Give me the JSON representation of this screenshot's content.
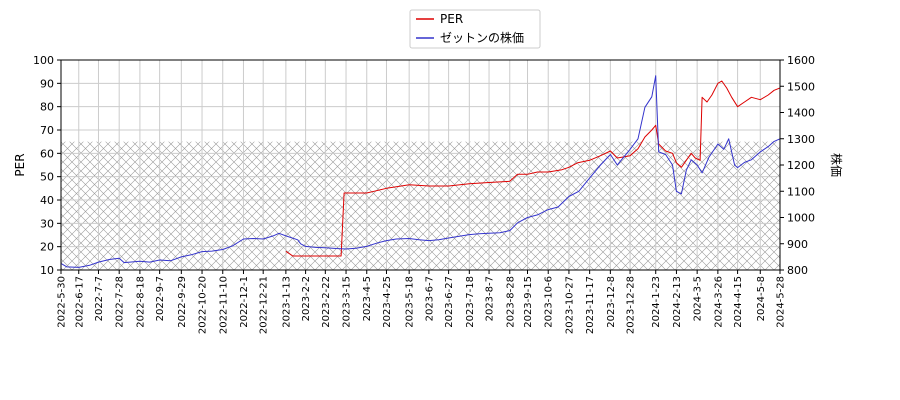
{
  "chart_data": {
    "type": "line",
    "title": "",
    "legend_position": "top-center",
    "grid": true,
    "hatched_band_left": [
      10,
      65
    ],
    "x_range": [
      "2022-05-30",
      "2024-05-28"
    ],
    "x_ticks": [
      "2022-5-30",
      "2022-6-17",
      "2022-7-7",
      "2022-7-28",
      "2022-8-18",
      "2022-9-7",
      "2022-9-29",
      "2022-10-20",
      "2022-11-10",
      "2022-12-1",
      "2022-12-21",
      "2023-1-13",
      "2023-2-2",
      "2023-2-22",
      "2023-3-15",
      "2023-4-5",
      "2023-4-25",
      "2023-5-18",
      "2023-6-7",
      "2023-6-27",
      "2023-7-18",
      "2023-8-7",
      "2023-8-28",
      "2023-9-15",
      "2023-10-6",
      "2023-10-27",
      "2023-11-17",
      "2023-12-8",
      "2023-12-28",
      "2024-1-23",
      "2024-2-13",
      "2024-3-5",
      "2024-3-26",
      "2024-4-15",
      "2024-5-8",
      "2024-5-28"
    ],
    "y_left": {
      "label": "PER",
      "range": [
        10,
        100
      ],
      "ticks": [
        "10",
        "20",
        "30",
        "40",
        "50",
        "60",
        "70",
        "80",
        "90",
        "100"
      ]
    },
    "y_right": {
      "label": "株価",
      "range": [
        800,
        1600
      ],
      "ticks": [
        "800",
        "900",
        "1000",
        "1100",
        "1200",
        "1300",
        "1400",
        "1500",
        "1600"
      ]
    },
    "series": [
      {
        "name": "PER",
        "color": "#dd0000",
        "axis": "left",
        "points": [
          [
            "2023-01-13",
            18
          ],
          [
            "2023-01-20",
            16
          ],
          [
            "2023-02-02",
            16
          ],
          [
            "2023-02-22",
            16
          ],
          [
            "2023-03-10",
            16
          ],
          [
            "2023-03-13",
            43
          ],
          [
            "2023-03-20",
            43
          ],
          [
            "2023-04-05",
            43
          ],
          [
            "2023-04-15",
            44
          ],
          [
            "2023-04-25",
            45
          ],
          [
            "2023-05-10",
            46
          ],
          [
            "2023-05-18",
            46.5
          ],
          [
            "2023-06-07",
            46
          ],
          [
            "2023-06-27",
            46
          ],
          [
            "2023-07-18",
            47
          ],
          [
            "2023-08-07",
            47.5
          ],
          [
            "2023-08-28",
            48
          ],
          [
            "2023-09-05",
            51
          ],
          [
            "2023-09-15",
            51
          ],
          [
            "2023-09-25",
            52
          ],
          [
            "2023-10-06",
            52
          ],
          [
            "2023-10-20",
            53
          ],
          [
            "2023-10-27",
            54
          ],
          [
            "2023-11-05",
            56
          ],
          [
            "2023-11-17",
            57
          ],
          [
            "2023-11-28",
            59
          ],
          [
            "2023-12-08",
            61
          ],
          [
            "2023-12-15",
            58
          ],
          [
            "2023-12-28",
            59
          ],
          [
            "2024-01-05",
            62
          ],
          [
            "2024-01-12",
            67
          ],
          [
            "2024-01-19",
            70
          ],
          [
            "2024-01-23",
            72
          ],
          [
            "2024-01-26",
            64
          ],
          [
            "2024-02-02",
            61
          ],
          [
            "2024-02-09",
            60
          ],
          [
            "2024-02-13",
            56
          ],
          [
            "2024-02-18",
            54
          ],
          [
            "2024-02-23",
            57
          ],
          [
            "2024-02-28",
            60
          ],
          [
            "2024-03-03",
            58
          ],
          [
            "2024-03-08",
            57
          ],
          [
            "2024-03-10",
            84
          ],
          [
            "2024-03-15",
            82
          ],
          [
            "2024-03-20",
            85
          ],
          [
            "2024-03-26",
            90
          ],
          [
            "2024-03-30",
            91
          ],
          [
            "2024-04-04",
            88
          ],
          [
            "2024-04-09",
            84
          ],
          [
            "2024-04-15",
            80
          ],
          [
            "2024-04-22",
            82
          ],
          [
            "2024-04-29",
            84
          ],
          [
            "2024-05-08",
            83
          ],
          [
            "2024-05-16",
            85
          ],
          [
            "2024-05-22",
            87
          ],
          [
            "2024-05-28",
            88
          ]
        ]
      },
      {
        "name": "ゼットンの株価",
        "color": "#3333cc",
        "axis": "right",
        "points": [
          [
            "2022-05-30",
            825
          ],
          [
            "2022-06-05",
            812
          ],
          [
            "2022-06-17",
            810
          ],
          [
            "2022-06-28",
            818
          ],
          [
            "2022-07-07",
            830
          ],
          [
            "2022-07-18",
            840
          ],
          [
            "2022-07-28",
            845
          ],
          [
            "2022-08-02",
            828
          ],
          [
            "2022-08-18",
            833
          ],
          [
            "2022-08-28",
            830
          ],
          [
            "2022-09-07",
            838
          ],
          [
            "2022-09-18",
            835
          ],
          [
            "2022-09-29",
            850
          ],
          [
            "2022-10-09",
            858
          ],
          [
            "2022-10-20",
            870
          ],
          [
            "2022-10-30",
            872
          ],
          [
            "2022-11-10",
            878
          ],
          [
            "2022-11-20",
            892
          ],
          [
            "2022-12-01",
            918
          ],
          [
            "2022-12-11",
            920
          ],
          [
            "2022-12-21",
            918
          ],
          [
            "2022-12-31",
            930
          ],
          [
            "2023-01-06",
            940
          ],
          [
            "2023-01-13",
            930
          ],
          [
            "2023-01-25",
            915
          ],
          [
            "2023-01-28",
            900
          ],
          [
            "2023-02-02",
            890
          ],
          [
            "2023-02-12",
            886
          ],
          [
            "2023-02-22",
            885
          ],
          [
            "2023-03-05",
            882
          ],
          [
            "2023-03-15",
            880
          ],
          [
            "2023-03-25",
            883
          ],
          [
            "2023-04-05",
            890
          ],
          [
            "2023-04-15",
            902
          ],
          [
            "2023-04-25",
            912
          ],
          [
            "2023-05-05",
            918
          ],
          [
            "2023-05-18",
            920
          ],
          [
            "2023-05-28",
            915
          ],
          [
            "2023-06-07",
            912
          ],
          [
            "2023-06-17",
            915
          ],
          [
            "2023-06-27",
            922
          ],
          [
            "2023-07-07",
            928
          ],
          [
            "2023-07-18",
            935
          ],
          [
            "2023-07-28",
            938
          ],
          [
            "2023-08-07",
            940
          ],
          [
            "2023-08-18",
            942
          ],
          [
            "2023-08-28",
            950
          ],
          [
            "2023-09-05",
            980
          ],
          [
            "2023-09-15",
            1000
          ],
          [
            "2023-09-25",
            1010
          ],
          [
            "2023-10-06",
            1030
          ],
          [
            "2023-10-16",
            1040
          ],
          [
            "2023-10-27",
            1080
          ],
          [
            "2023-11-06",
            1100
          ],
          [
            "2023-11-17",
            1150
          ],
          [
            "2023-11-28",
            1200
          ],
          [
            "2023-12-08",
            1240
          ],
          [
            "2023-12-15",
            1200
          ],
          [
            "2023-12-28",
            1260
          ],
          [
            "2024-01-05",
            1300
          ],
          [
            "2024-01-12",
            1420
          ],
          [
            "2024-01-19",
            1460
          ],
          [
            "2024-01-23",
            1540
          ],
          [
            "2024-01-26",
            1250
          ],
          [
            "2024-02-02",
            1240
          ],
          [
            "2024-02-09",
            1200
          ],
          [
            "2024-02-13",
            1100
          ],
          [
            "2024-02-18",
            1090
          ],
          [
            "2024-02-23",
            1180
          ],
          [
            "2024-02-28",
            1220
          ],
          [
            "2024-03-05",
            1200
          ],
          [
            "2024-03-10",
            1170
          ],
          [
            "2024-03-17",
            1230
          ],
          [
            "2024-03-26",
            1280
          ],
          [
            "2024-04-01",
            1260
          ],
          [
            "2024-04-06",
            1300
          ],
          [
            "2024-04-12",
            1200
          ],
          [
            "2024-04-15",
            1190
          ],
          [
            "2024-04-22",
            1210
          ],
          [
            "2024-04-29",
            1220
          ],
          [
            "2024-05-08",
            1250
          ],
          [
            "2024-05-16",
            1270
          ],
          [
            "2024-05-22",
            1290
          ],
          [
            "2024-05-28",
            1300
          ]
        ]
      }
    ]
  }
}
